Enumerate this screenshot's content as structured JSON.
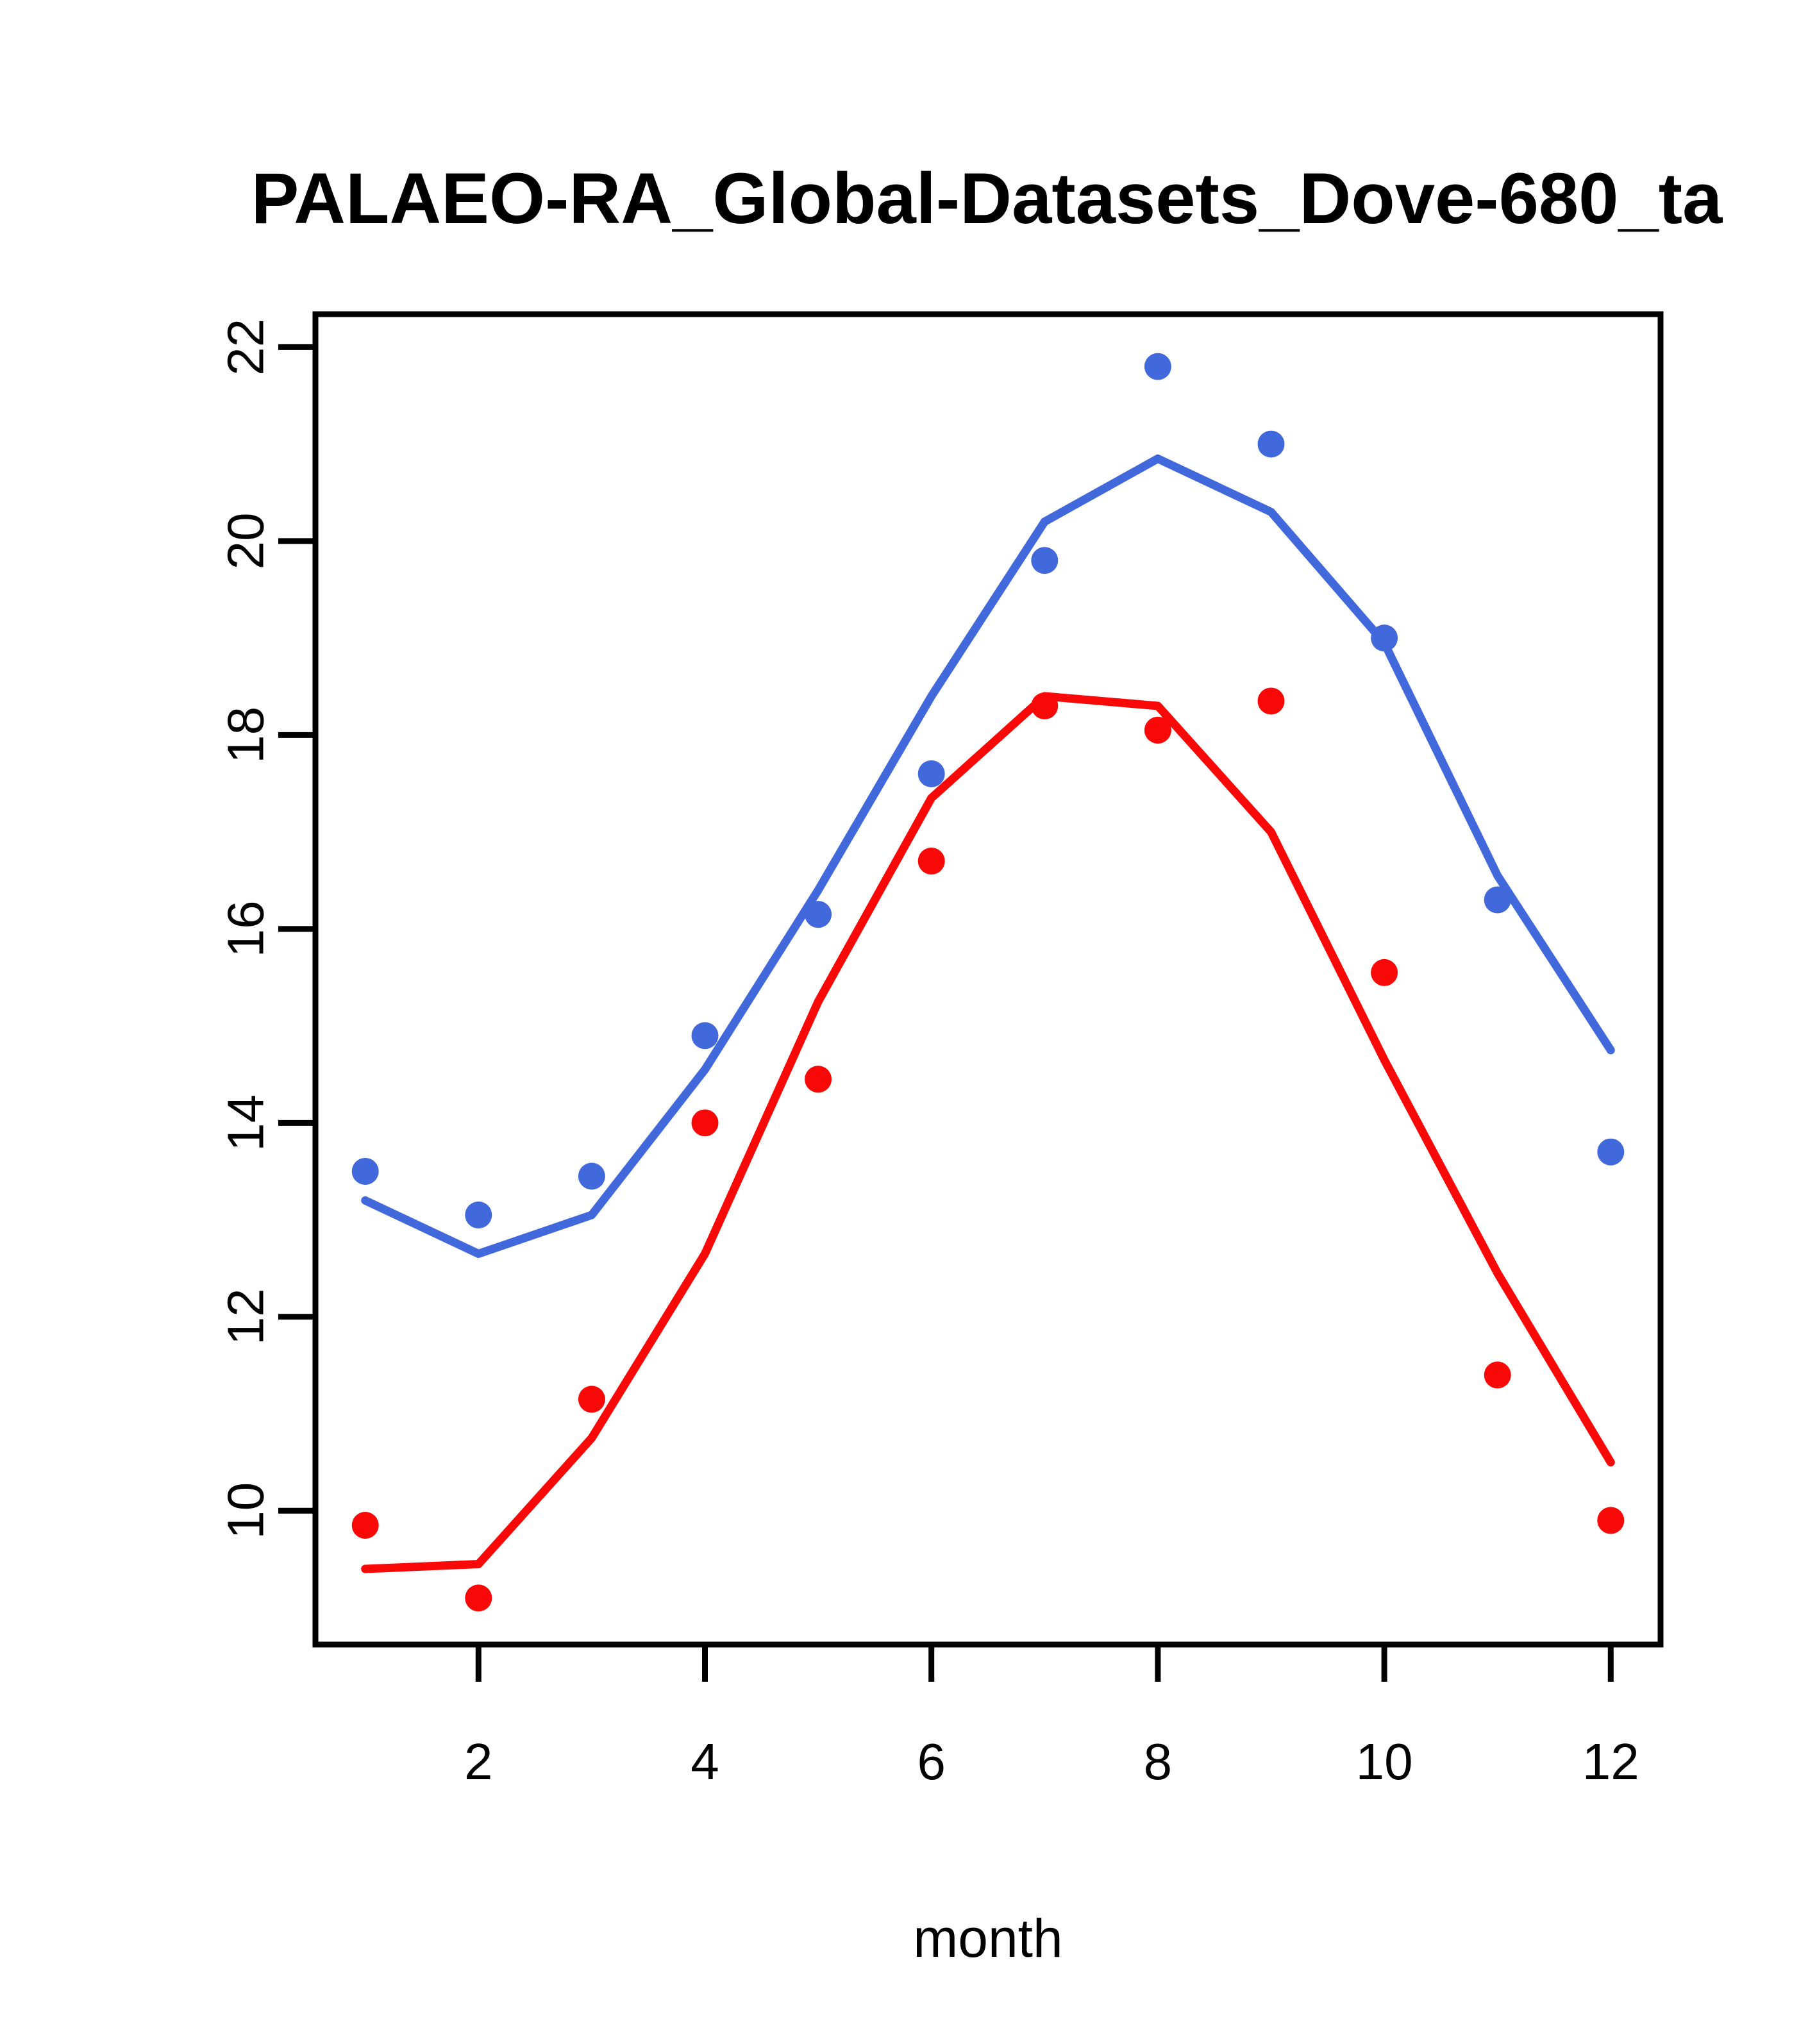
{
  "title": "PALAEO-RA_Global-Datasets_Dove-680_ta",
  "xlabel": "month",
  "colors": {
    "blue": "#4169DB",
    "red": "#F90808",
    "axis": "#000000",
    "background": "#ffffff"
  },
  "chart_data": {
    "type": "line",
    "title": "PALAEO-RA_Global-Datasets_Dove-680_ta",
    "xlabel": "month",
    "ylabel": "",
    "x": [
      1,
      2,
      3,
      4,
      5,
      6,
      7,
      8,
      9,
      10,
      11,
      12
    ],
    "x_ticks": [
      2,
      4,
      6,
      8,
      10,
      12
    ],
    "y_ticks": [
      10,
      12,
      14,
      16,
      18,
      20,
      22
    ],
    "xlim": [
      0.56,
      12.44
    ],
    "ylim": [
      8.62,
      22.34
    ],
    "grid": false,
    "legend": "none",
    "series": [
      {
        "name": "blue-line",
        "style": "line",
        "color": "blue",
        "values": [
          13.2,
          12.65,
          13.05,
          14.55,
          16.4,
          18.4,
          20.2,
          20.85,
          20.3,
          18.95,
          16.55,
          14.75
        ]
      },
      {
        "name": "blue-points",
        "style": "scatter",
        "color": "blue",
        "values": [
          13.5,
          13.05,
          13.45,
          14.9,
          16.15,
          17.6,
          19.8,
          21.8,
          21.0,
          19.0,
          16.3,
          13.7
        ]
      },
      {
        "name": "red-line",
        "style": "line",
        "color": "red",
        "values": [
          9.4,
          9.45,
          10.75,
          12.65,
          15.25,
          17.35,
          18.4,
          18.3,
          17.0,
          14.65,
          12.45,
          10.5
        ]
      },
      {
        "name": "red-points",
        "style": "scatter",
        "color": "red",
        "values": [
          9.85,
          9.1,
          11.15,
          14.0,
          14.45,
          16.7,
          18.3,
          18.05,
          18.35,
          15.55,
          11.4,
          9.9
        ]
      }
    ]
  }
}
